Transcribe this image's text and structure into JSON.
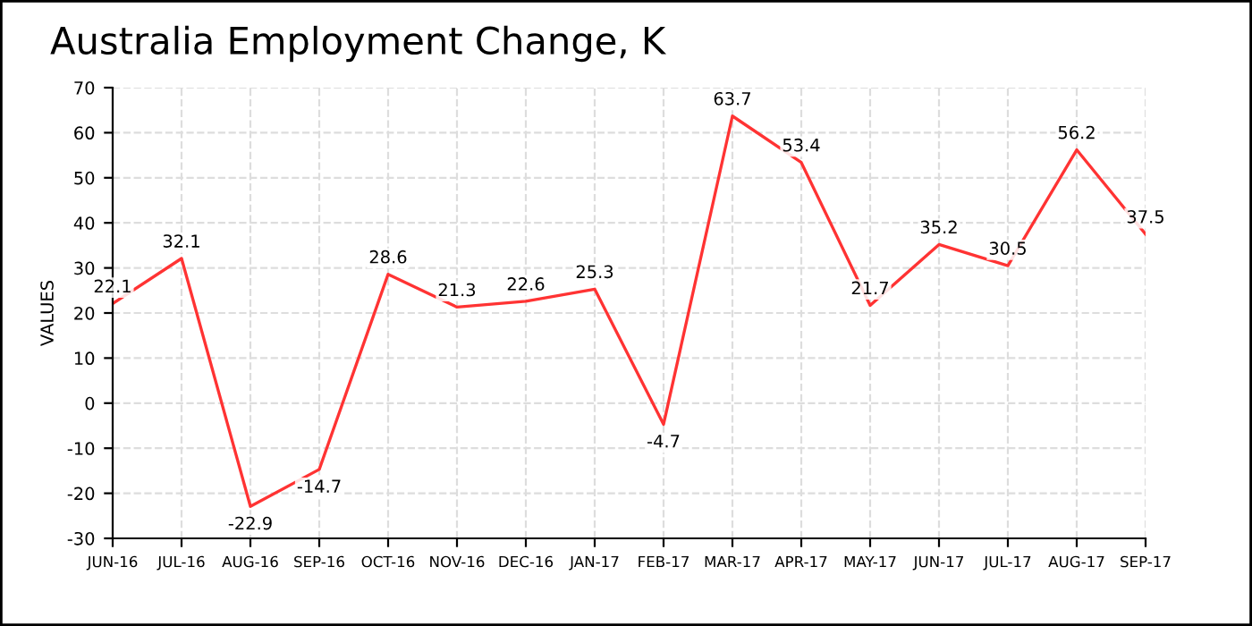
{
  "chart_data": {
    "type": "line",
    "title": "Australia Employment Change, K",
    "ylabel": "VALUES",
    "categories": [
      "JUN-16",
      "JUL-16",
      "AUG-16",
      "SEP-16",
      "OCT-16",
      "NOV-16",
      "DEC-16",
      "JAN-17",
      "FEB-17",
      "MAR-17",
      "APR-17",
      "MAY-17",
      "JUN-17",
      "JUL-17",
      "AUG-17",
      "SEP-17"
    ],
    "series": [
      {
        "color": "#ff3333",
        "values": [
          22.1,
          32.1,
          -22.9,
          -14.7,
          28.6,
          21.3,
          22.6,
          25.3,
          -4.7,
          63.7,
          53.4,
          21.7,
          35.2,
          30.5,
          56.2,
          37.5
        ]
      }
    ],
    "ylim": [
      -30,
      70
    ],
    "yticks": [
      -30,
      -20,
      -10,
      0,
      10,
      20,
      30,
      40,
      50,
      60,
      70
    ],
    "grid": true,
    "data_labels": true,
    "marker": "none",
    "line_style": "solid"
  }
}
